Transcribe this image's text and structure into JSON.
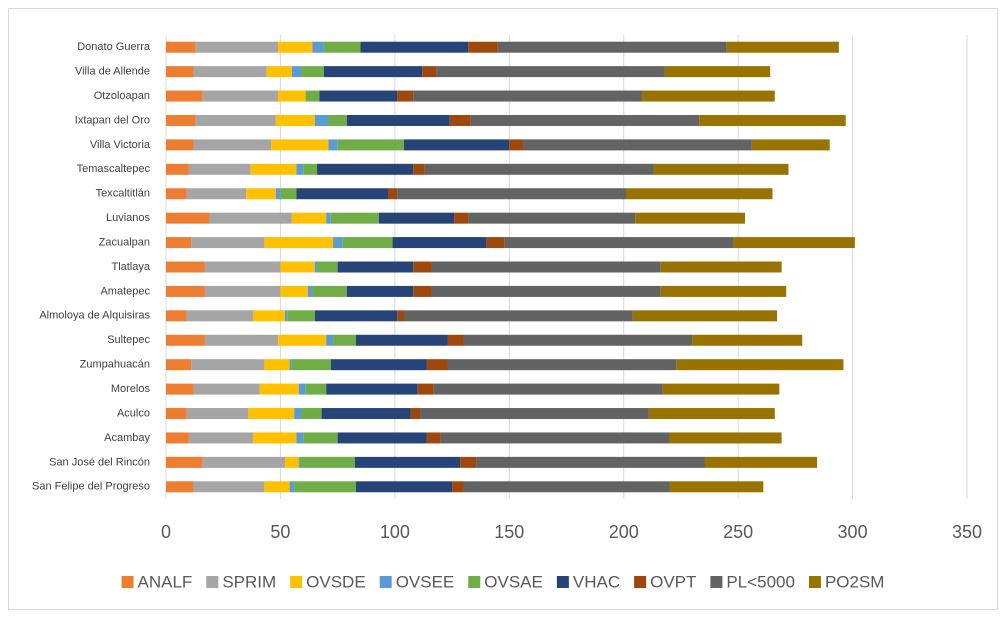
{
  "chart_data": {
    "type": "stacked_barh",
    "categories": [
      "Donato Guerra",
      "Villa de Allende",
      "Otzoloapan",
      "Ixtapan del Oro",
      "Villa Victoria",
      "Temascaltepec",
      "Texcaltitlán",
      "Luvianos",
      "Zacualpan",
      "Tlatlaya",
      "Amatepec",
      "Almoloya de Alquisiras",
      "Sultepec",
      "Zumpahuacán",
      "Morelos",
      "Aculco",
      "Acambay",
      "San José del Rincón",
      "San Felipe del Progreso"
    ],
    "series": [
      {
        "name": "ANALF",
        "color": "#ED7D31",
        "values": [
          13,
          12,
          16,
          13,
          12,
          10,
          9,
          19,
          11,
          17,
          17,
          9,
          17,
          11,
          12,
          9,
          10,
          16,
          12
        ]
      },
      {
        "name": "SPRIM",
        "color": "#A5A5A5",
        "values": [
          36,
          32,
          33,
          35,
          34,
          27,
          26,
          36,
          32,
          33,
          33,
          29,
          32,
          32,
          29,
          27,
          28,
          36,
          31
        ]
      },
      {
        "name": "OVSDE",
        "color": "#FFC000",
        "values": [
          15,
          11,
          12,
          17,
          25,
          20,
          13,
          15,
          30,
          15,
          12,
          14,
          21,
          11,
          17,
          20,
          19,
          6,
          11
        ]
      },
      {
        "name": "OVSEE",
        "color": "#5B9BD5",
        "values": [
          5,
          4,
          0,
          6,
          4,
          3,
          2,
          2,
          4,
          1,
          2,
          1,
          3,
          1,
          3,
          3,
          3,
          0.5,
          2
        ]
      },
      {
        "name": "OVSAE",
        "color": "#70AD47",
        "values": [
          16,
          10,
          6,
          8,
          29,
          6,
          7,
          21,
          22,
          9,
          15,
          12,
          10,
          17,
          9,
          9,
          15,
          24,
          27
        ]
      },
      {
        "name": "VHAC",
        "color": "#264478",
        "values": [
          47,
          43,
          34,
          45,
          46,
          42,
          40,
          33,
          41,
          33,
          29,
          36,
          40,
          42,
          40,
          39,
          39,
          46,
          42
        ]
      },
      {
        "name": "OVPT",
        "color": "#9E480E",
        "values": [
          13,
          6,
          7,
          9,
          6,
          5,
          4,
          6,
          8,
          8,
          8,
          3,
          7,
          9,
          7,
          4,
          6,
          7,
          5
        ]
      },
      {
        "name": "PL<5000",
        "color": "#636363",
        "values": [
          100,
          100,
          100,
          100,
          100,
          100,
          100,
          73,
          100,
          100,
          100,
          100,
          100,
          100,
          100,
          100,
          100,
          100,
          90
        ]
      },
      {
        "name": "PO2SM",
        "color": "#997300",
        "values": [
          49,
          46,
          58,
          64,
          34,
          59,
          64,
          48,
          53,
          53,
          55,
          63,
          48,
          73,
          51,
          55,
          49,
          49,
          41
        ]
      }
    ],
    "xlim": [
      0,
      350
    ],
    "xticks": [
      0,
      50,
      100,
      150,
      200,
      250,
      300,
      350
    ],
    "grid": true,
    "legend": "bottom"
  }
}
